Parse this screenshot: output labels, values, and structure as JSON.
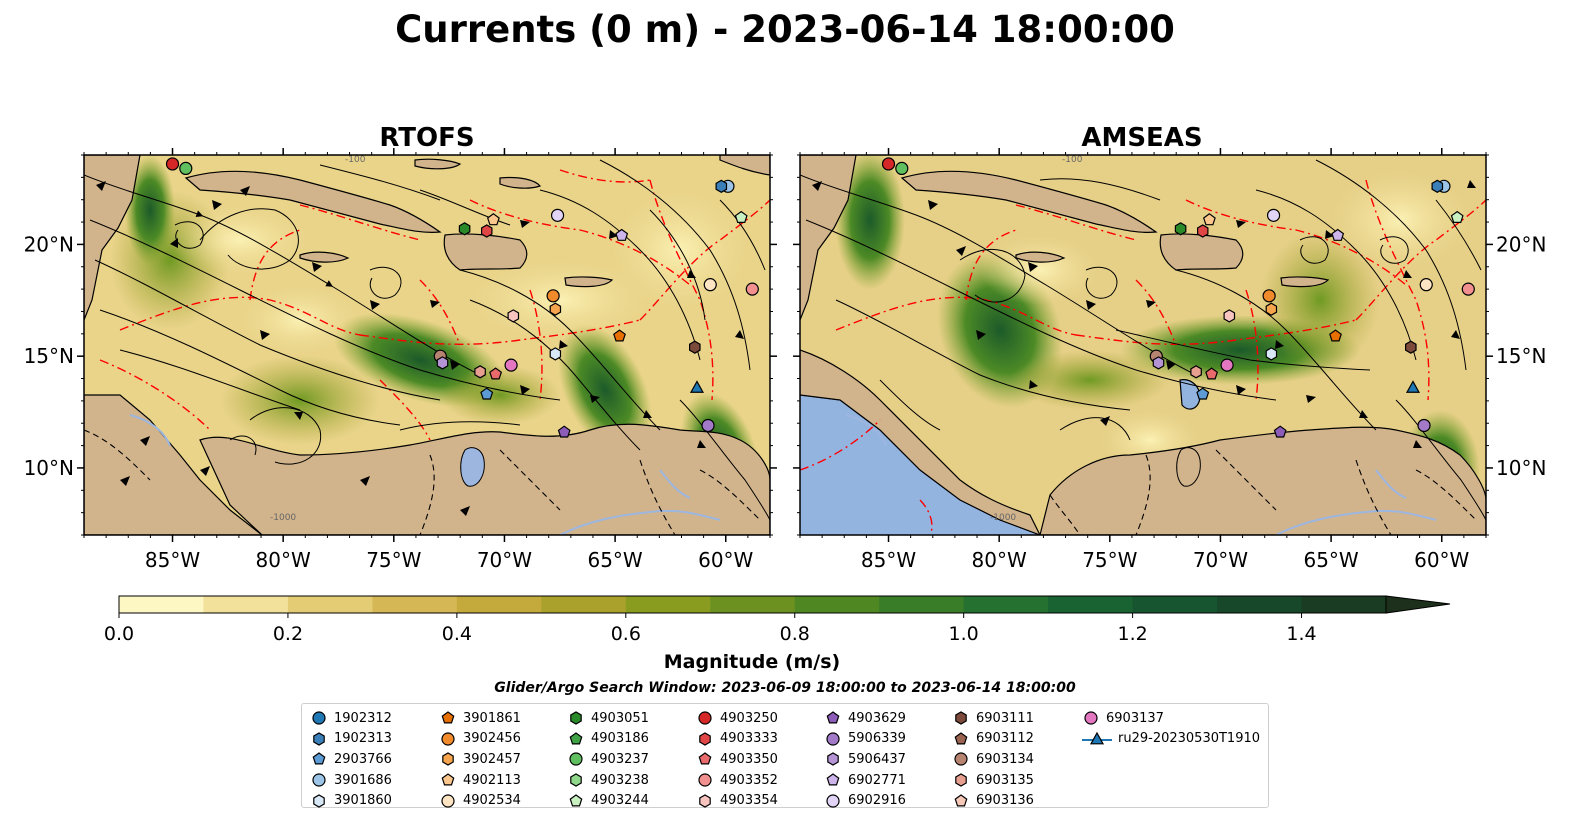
{
  "figure": {
    "title": "Currents (0 m) - 2023-06-14 18:00:00",
    "search_window": "Glider/Argo Search Window: 2023-06-09 18:00:00 to 2023-06-14 18:00:00"
  },
  "chart_data": [
    {
      "type": "heatmap",
      "title": "RTOFS",
      "variable": "surface current magnitude (m/s) with streamlines",
      "x_ticks": [
        "85°W",
        "80°W",
        "75°W",
        "70°W",
        "65°W",
        "60°W"
      ],
      "y_ticks": [
        "20°N",
        "15°N",
        "10°N"
      ],
      "xlim": [
        -89,
        -58
      ],
      "ylim": [
        7,
        24
      ]
    },
    {
      "type": "heatmap",
      "title": "AMSEAS",
      "variable": "surface current magnitude (m/s) with streamlines",
      "x_ticks": [
        "85°W",
        "80°W",
        "75°W",
        "70°W",
        "65°W",
        "60°W"
      ],
      "y_ticks": [
        "20°N",
        "15°N",
        "10°N"
      ],
      "xlim": [
        -89,
        -58
      ],
      "ylim": [
        7,
        24
      ]
    }
  ],
  "colorbar": {
    "label": "Magnitude (m/s)",
    "ticks": [
      "0.0",
      "0.2",
      "0.4",
      "0.6",
      "0.8",
      "1.0",
      "1.2",
      "1.4"
    ],
    "range": [
      0,
      1.5
    ],
    "extend": "max",
    "colors": [
      "#fdf7c4",
      "#f1e19a",
      "#e4cc74",
      "#d6b756",
      "#c4a93c",
      "#a9a12c",
      "#8a9c20",
      "#6c9120",
      "#4f8722",
      "#3a7d28",
      "#25712f",
      "#196232",
      "#175530",
      "#18482a",
      "#1a3c22",
      "#1c301b"
    ]
  },
  "colors": {
    "land": "#d2b48c",
    "inland_water": "#9cb6e0",
    "eez_lines": "#ff0000",
    "glider_track": "#1f77b4"
  },
  "map_labels": {
    "isobath": "-100",
    "isobath2": "-1000"
  },
  "legend": [
    {
      "label": "1902312",
      "marker": "circle",
      "color": "#1f77b4"
    },
    {
      "label": "1902313",
      "marker": "hexagon",
      "color": "#3a7fb8"
    },
    {
      "label": "2903766",
      "marker": "pentagon",
      "color": "#5c9bd3"
    },
    {
      "label": "3901686",
      "marker": "circle",
      "color": "#9cc4e6"
    },
    {
      "label": "3901860",
      "marker": "hexagon",
      "color": "#d8e8f6"
    },
    {
      "label": "3901861",
      "marker": "pentagon",
      "color": "#e66f00"
    },
    {
      "label": "3902456",
      "marker": "circle",
      "color": "#f08a2a"
    },
    {
      "label": "3902457",
      "marker": "hexagon",
      "color": "#f6a54e"
    },
    {
      "label": "4902113",
      "marker": "pentagon",
      "color": "#fbc78c"
    },
    {
      "label": "4902534",
      "marker": "circle",
      "color": "#fde4c2"
    },
    {
      "label": "4903051",
      "marker": "hexagon",
      "color": "#2a8a2a"
    },
    {
      "label": "4903186",
      "marker": "pentagon",
      "color": "#3fa346"
    },
    {
      "label": "4903237",
      "marker": "circle",
      "color": "#60c060"
    },
    {
      "label": "4903238",
      "marker": "hexagon",
      "color": "#8fd88b"
    },
    {
      "label": "4903244",
      "marker": "pentagon",
      "color": "#c8f0c0"
    },
    {
      "label": "4903250",
      "marker": "circle",
      "color": "#d62728"
    },
    {
      "label": "4903333",
      "marker": "hexagon",
      "color": "#e04646"
    },
    {
      "label": "4903350",
      "marker": "pentagon",
      "color": "#e86a6a"
    },
    {
      "label": "4903352",
      "marker": "circle",
      "color": "#f29090"
    },
    {
      "label": "4903354",
      "marker": "hexagon",
      "color": "#f8c4c0"
    },
    {
      "label": "4903629",
      "marker": "pentagon",
      "color": "#8c5cb8"
    },
    {
      "label": "5906339",
      "marker": "circle",
      "color": "#a27ac8"
    },
    {
      "label": "5906437",
      "marker": "hexagon",
      "color": "#b594d6"
    },
    {
      "label": "6902771",
      "marker": "pentagon",
      "color": "#cdb5ec"
    },
    {
      "label": "6902916",
      "marker": "circle",
      "color": "#e2d4f6"
    },
    {
      "label": "6903111",
      "marker": "hexagon",
      "color": "#7b4a3a"
    },
    {
      "label": "6903112",
      "marker": "pentagon",
      "color": "#9a6450"
    },
    {
      "label": "6903134",
      "marker": "circle",
      "color": "#b88472"
    },
    {
      "label": "6903135",
      "marker": "hexagon",
      "color": "#e7a090"
    },
    {
      "label": "6903136",
      "marker": "pentagon",
      "color": "#f6c8b8"
    },
    {
      "label": "6903137",
      "marker": "circle",
      "color": "#e377c2"
    },
    {
      "label": "ru29-20230530T1910",
      "marker": "triangle-line",
      "color": "#1f77b4"
    }
  ],
  "markers": [
    {
      "id": "3901686",
      "lon": -59.9,
      "lat": 22.6
    },
    {
      "id": "1902313",
      "lon": -60.2,
      "lat": 22.6
    },
    {
      "id": "4903244",
      "lon": -59.3,
      "lat": 21.2
    },
    {
      "id": "4903237",
      "lon": -84.4,
      "lat": 23.4
    },
    {
      "id": "4903250",
      "lon": -85.0,
      "lat": 23.6
    },
    {
      "id": "4903051",
      "lon": -71.8,
      "lat": 20.7
    },
    {
      "id": "4903333",
      "lon": -70.8,
      "lat": 20.6
    },
    {
      "id": "4902113",
      "lon": -70.5,
      "lat": 21.1
    },
    {
      "id": "6902916",
      "lon": -67.6,
      "lat": 21.3
    },
    {
      "id": "6902771",
      "lon": -64.7,
      "lat": 20.4
    },
    {
      "id": "3902456",
      "lon": -67.8,
      "lat": 17.7
    },
    {
      "id": "3902457",
      "lon": -67.7,
      "lat": 17.1
    },
    {
      "id": "4903354",
      "lon": -69.6,
      "lat": 16.8
    },
    {
      "id": "3901861",
      "lon": -64.8,
      "lat": 15.9
    },
    {
      "id": "4902534",
      "lon": -60.7,
      "lat": 18.2
    },
    {
      "id": "4903352",
      "lon": -58.8,
      "lat": 18.0
    },
    {
      "id": "6903111",
      "lon": -61.4,
      "lat": 15.4
    },
    {
      "id": "6903134",
      "lon": -72.9,
      "lat": 15.0
    },
    {
      "id": "5906437",
      "lon": -72.8,
      "lat": 14.7
    },
    {
      "id": "6903137",
      "lon": -69.7,
      "lat": 14.6
    },
    {
      "id": "6903135",
      "lon": -71.1,
      "lat": 14.3
    },
    {
      "id": "4903350",
      "lon": -70.4,
      "lat": 14.2
    },
    {
      "id": "3901860",
      "lon": -67.7,
      "lat": 15.1
    },
    {
      "id": "2903766",
      "lon": -70.8,
      "lat": 13.3
    },
    {
      "id": "4903629",
      "lon": -67.3,
      "lat": 11.6
    },
    {
      "id": "5906339",
      "lon": -60.8,
      "lat": 11.9
    },
    {
      "id": "ru29-20230530T1910",
      "lon": -61.3,
      "lat": 13.6
    }
  ]
}
